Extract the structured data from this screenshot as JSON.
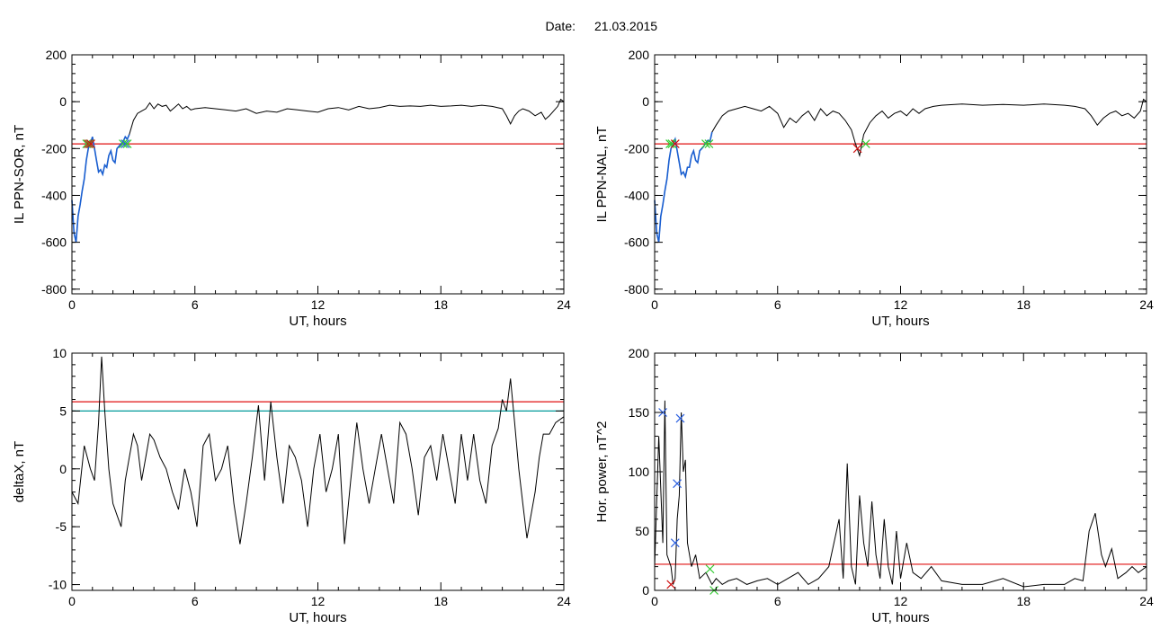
{
  "figure": {
    "date_label": "Date:",
    "date_value": "21.03.2015"
  },
  "colors": {
    "trace": "#000000",
    "highlight": "#1a5fd1",
    "red_line": "#e01010",
    "teal_line": "#009a9a",
    "green_marker": "#33cc33",
    "blue_marker": "#2a5fe0",
    "red_marker": "#d01010"
  },
  "chart_data": [
    {
      "type": "line",
      "xlabel": "UT, hours",
      "ylabel": "IL PPN-SOR, nT",
      "xlim": [
        0,
        24
      ],
      "ylim": [
        -820,
        200
      ],
      "xticks": [
        0,
        6,
        12,
        18,
        24
      ],
      "yticks": [
        -800,
        -600,
        -400,
        -200,
        0,
        200
      ],
      "x": [
        0,
        0.1,
        0.2,
        0.3,
        0.4,
        0.5,
        0.6,
        0.7,
        0.8,
        0.9,
        1.0,
        1.1,
        1.2,
        1.3,
        1.4,
        1.5,
        1.6,
        1.7,
        1.8,
        1.9,
        2.0,
        2.1,
        2.2,
        2.3,
        2.4,
        2.5,
        2.6,
        2.7,
        2.8,
        2.9,
        3.0,
        3.2,
        3.4,
        3.6,
        3.8,
        4.0,
        4.2,
        4.4,
        4.6,
        4.8,
        5.0,
        5.2,
        5.4,
        5.6,
        5.8,
        6.0,
        6.5,
        7.0,
        7.5,
        8.0,
        8.5,
        9.0,
        9.5,
        10.0,
        10.5,
        11.0,
        11.5,
        12.0,
        12.5,
        13.0,
        13.5,
        14.0,
        14.5,
        15.0,
        15.5,
        16.0,
        16.5,
        17.0,
        17.5,
        18.0,
        18.5,
        19.0,
        19.5,
        20.0,
        20.5,
        21.0,
        21.2,
        21.4,
        21.6,
        21.8,
        22.0,
        22.3,
        22.6,
        22.9,
        23.1,
        23.3,
        23.5,
        23.7,
        23.85,
        24.0
      ],
      "values": [
        -420,
        -560,
        -600,
        -490,
        -440,
        -380,
        -330,
        -250,
        -200,
        -180,
        -150,
        -200,
        -250,
        -300,
        -290,
        -310,
        -270,
        -280,
        -230,
        -210,
        -250,
        -260,
        -200,
        -190,
        -180,
        -170,
        -150,
        -160,
        -140,
        -110,
        -80,
        -50,
        -40,
        -30,
        -5,
        -30,
        -10,
        -20,
        -15,
        -40,
        -25,
        -10,
        -30,
        -20,
        -35,
        -30,
        -25,
        -30,
        -35,
        -40,
        -30,
        -50,
        -40,
        -45,
        -30,
        -35,
        -40,
        -45,
        -30,
        -25,
        -35,
        -20,
        -30,
        -25,
        -15,
        -20,
        -18,
        -20,
        -15,
        -20,
        -18,
        -15,
        -20,
        -15,
        -20,
        -30,
        -60,
        -95,
        -60,
        -40,
        -30,
        -40,
        -60,
        -45,
        -75,
        -60,
        -40,
        -20,
        10,
        0
      ],
      "highlight_segment": {
        "x_start": 0,
        "x_end": 2.8
      },
      "threshold_lines": [
        {
          "y": -180,
          "color": "red"
        }
      ],
      "markers": [
        {
          "x": 0.72,
          "y": -180,
          "color": "green"
        },
        {
          "x": 0.8,
          "y": -180,
          "color": "red"
        },
        {
          "x": 0.88,
          "y": -180,
          "color": "green"
        },
        {
          "x": 0.92,
          "y": -180,
          "color": "red"
        },
        {
          "x": 2.5,
          "y": -180,
          "color": "green"
        },
        {
          "x": 2.6,
          "y": -180,
          "color": "blue"
        },
        {
          "x": 2.7,
          "y": -180,
          "color": "green"
        }
      ]
    },
    {
      "type": "line",
      "xlabel": "UT, hours",
      "ylabel": "IL PPN-NAL, nT",
      "xlim": [
        0,
        24
      ],
      "ylim": [
        -820,
        200
      ],
      "xticks": [
        0,
        6,
        12,
        18,
        24
      ],
      "yticks": [
        -800,
        -600,
        -400,
        -200,
        0,
        200
      ],
      "x": [
        0,
        0.1,
        0.2,
        0.3,
        0.4,
        0.5,
        0.6,
        0.7,
        0.8,
        0.9,
        1.0,
        1.1,
        1.2,
        1.3,
        1.4,
        1.5,
        1.6,
        1.7,
        1.8,
        1.9,
        2.0,
        2.1,
        2.2,
        2.3,
        2.4,
        2.5,
        2.6,
        2.7,
        2.8,
        3.0,
        3.3,
        3.6,
        4.0,
        4.4,
        4.8,
        5.2,
        5.6,
        6.0,
        6.3,
        6.6,
        6.9,
        7.2,
        7.5,
        7.8,
        8.1,
        8.4,
        8.7,
        9.0,
        9.3,
        9.6,
        9.8,
        10.0,
        10.2,
        10.5,
        10.8,
        11.1,
        11.4,
        11.7,
        12.0,
        12.3,
        12.6,
        12.9,
        13.2,
        13.6,
        14.0,
        15.0,
        16.0,
        17.0,
        18.0,
        19.0,
        20.0,
        20.5,
        21.0,
        21.3,
        21.6,
        21.9,
        22.2,
        22.5,
        22.8,
        23.1,
        23.4,
        23.7,
        23.85,
        24.0
      ],
      "values": [
        -420,
        -560,
        -600,
        -490,
        -440,
        -380,
        -330,
        -250,
        -200,
        -180,
        -160,
        -210,
        -260,
        -310,
        -300,
        -320,
        -280,
        -280,
        -230,
        -210,
        -250,
        -260,
        -210,
        -200,
        -190,
        -175,
        -165,
        -170,
        -130,
        -100,
        -60,
        -40,
        -30,
        -20,
        -30,
        -40,
        -20,
        -50,
        -110,
        -70,
        -90,
        -60,
        -40,
        -80,
        -30,
        -60,
        -40,
        -50,
        -80,
        -120,
        -180,
        -230,
        -140,
        -90,
        -60,
        -40,
        -70,
        -50,
        -40,
        -60,
        -30,
        -50,
        -30,
        -20,
        -15,
        -10,
        -15,
        -12,
        -15,
        -10,
        -15,
        -20,
        -30,
        -60,
        -100,
        -70,
        -50,
        -40,
        -60,
        -50,
        -70,
        -40,
        10,
        0
      ],
      "highlight_segment": {
        "x_start": 0,
        "x_end": 2.8
      },
      "threshold_lines": [
        {
          "y": -180,
          "color": "red"
        }
      ],
      "markers": [
        {
          "x": 0.75,
          "y": -180,
          "color": "green"
        },
        {
          "x": 0.85,
          "y": -180,
          "color": "green"
        },
        {
          "x": 1.0,
          "y": -180,
          "color": "red"
        },
        {
          "x": 2.5,
          "y": -180,
          "color": "green"
        },
        {
          "x": 2.65,
          "y": -180,
          "color": "green"
        },
        {
          "x": 9.9,
          "y": -200,
          "color": "red"
        },
        {
          "x": 10.3,
          "y": -180,
          "color": "green"
        }
      ]
    },
    {
      "type": "line",
      "xlabel": "UT, hours",
      "ylabel": "deltaX, nT",
      "xlim": [
        0,
        24
      ],
      "ylim": [
        -10.5,
        10
      ],
      "xticks": [
        0,
        6,
        12,
        18,
        24
      ],
      "yticks": [
        -10,
        -5,
        0,
        5,
        10
      ],
      "x": [
        0,
        0.3,
        0.6,
        0.9,
        1.1,
        1.3,
        1.45,
        1.6,
        1.8,
        2.0,
        2.2,
        2.4,
        2.6,
        2.8,
        3.0,
        3.2,
        3.4,
        3.6,
        3.8,
        4.0,
        4.3,
        4.6,
        4.9,
        5.2,
        5.5,
        5.8,
        6.1,
        6.4,
        6.7,
        7.0,
        7.3,
        7.6,
        7.9,
        8.2,
        8.5,
        8.8,
        9.1,
        9.4,
        9.7,
        10.0,
        10.3,
        10.6,
        10.9,
        11.2,
        11.5,
        11.8,
        12.1,
        12.4,
        12.7,
        13.0,
        13.3,
        13.6,
        13.9,
        14.2,
        14.5,
        14.8,
        15.1,
        15.4,
        15.7,
        16.0,
        16.3,
        16.6,
        16.9,
        17.2,
        17.5,
        17.8,
        18.1,
        18.4,
        18.7,
        19.0,
        19.3,
        19.6,
        19.9,
        20.2,
        20.5,
        20.8,
        21.0,
        21.2,
        21.4,
        21.6,
        21.8,
        22.0,
        22.2,
        22.4,
        22.6,
        22.8,
        23.0,
        23.3,
        23.6,
        24.0
      ],
      "values": [
        -2,
        -3,
        2,
        0,
        -1,
        4,
        9.7,
        5,
        0,
        -3,
        -4,
        -5,
        -1,
        1,
        3,
        2,
        -1,
        1,
        3,
        2.5,
        1,
        0,
        -2,
        -3.5,
        0,
        -2,
        -5,
        2,
        3,
        -1,
        0,
        2,
        -3,
        -6.5,
        -3,
        1,
        5.5,
        -1,
        5.8,
        1,
        -3,
        2,
        1,
        -1,
        -5,
        0,
        3,
        -2,
        0,
        3,
        -6.5,
        -1,
        4,
        0,
        -3,
        0,
        3,
        0,
        -3,
        4,
        3,
        0,
        -4,
        1,
        2,
        -1,
        3,
        0,
        -3,
        3,
        -1,
        3,
        -1,
        -3,
        2,
        3.5,
        6,
        5,
        7.8,
        4,
        0,
        -3,
        -6,
        -4,
        -2,
        1,
        3,
        3,
        4,
        4.5
      ],
      "threshold_lines": [
        {
          "y": 5.8,
          "color": "red"
        },
        {
          "y": 5,
          "color": "teal"
        }
      ]
    },
    {
      "type": "line",
      "xlabel": "UT, hours",
      "ylabel": "Hor. power, nT^2",
      "xlim": [
        0,
        24
      ],
      "ylim": [
        0,
        200
      ],
      "xticks": [
        0,
        6,
        12,
        18,
        24
      ],
      "yticks": [
        0,
        50,
        100,
        150,
        200
      ],
      "x": [
        0,
        0.2,
        0.4,
        0.5,
        0.6,
        0.8,
        0.9,
        1.0,
        1.1,
        1.2,
        1.3,
        1.4,
        1.5,
        1.6,
        1.8,
        2.0,
        2.2,
        2.5,
        2.8,
        3.0,
        3.3,
        3.6,
        4.0,
        4.5,
        5.0,
        5.5,
        6.0,
        6.5,
        7.0,
        7.5,
        8.0,
        8.5,
        9.0,
        9.2,
        9.4,
        9.6,
        9.8,
        10.0,
        10.2,
        10.4,
        10.6,
        10.8,
        11.0,
        11.2,
        11.4,
        11.6,
        11.8,
        12.0,
        12.3,
        12.6,
        13.0,
        13.5,
        14.0,
        15.0,
        16.0,
        17.0,
        18.0,
        19.0,
        20.0,
        20.5,
        20.9,
        21.2,
        21.5,
        21.8,
        22.0,
        22.3,
        22.6,
        23.0,
        23.3,
        23.6,
        24.0
      ],
      "values": [
        20,
        130,
        40,
        160,
        30,
        20,
        5,
        10,
        60,
        80,
        150,
        100,
        110,
        40,
        20,
        30,
        10,
        15,
        5,
        10,
        5,
        8,
        10,
        5,
        8,
        10,
        5,
        10,
        15,
        5,
        10,
        20,
        60,
        10,
        107,
        20,
        5,
        80,
        40,
        20,
        75,
        30,
        10,
        60,
        20,
        5,
        50,
        10,
        40,
        15,
        10,
        20,
        8,
        5,
        5,
        10,
        3,
        5,
        5,
        10,
        8,
        50,
        65,
        30,
        20,
        35,
        10,
        15,
        20,
        15,
        20
      ],
      "threshold_lines": [
        {
          "y": 22,
          "color": "red"
        }
      ],
      "markers": [
        {
          "x": 0.4,
          "y": 150,
          "color": "blue"
        },
        {
          "x": 1.25,
          "y": 145,
          "color": "blue"
        },
        {
          "x": 1.1,
          "y": 90,
          "color": "blue"
        },
        {
          "x": 1.0,
          "y": 40,
          "color": "blue"
        },
        {
          "x": 0.8,
          "y": 5,
          "color": "red"
        },
        {
          "x": 2.7,
          "y": 18,
          "color": "green"
        },
        {
          "x": 2.9,
          "y": 0,
          "color": "green"
        }
      ]
    }
  ]
}
